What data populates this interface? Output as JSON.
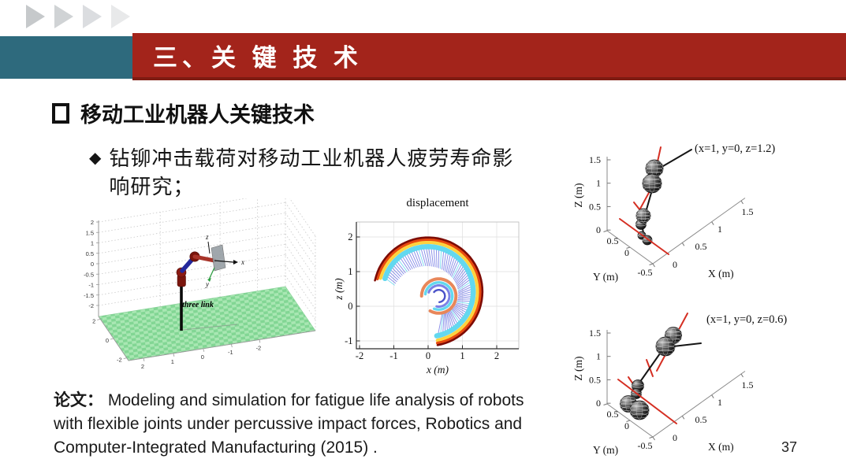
{
  "slide": {
    "title": "三、关 键 技 术",
    "heading": "移动工业机器人关键技术",
    "bullet_marker": "◆",
    "bullet": "钻铆冲击载荷对移动工业机器人疲劳寿命影\n响研究；",
    "paper_label": "论文：",
    "paper_text": "Modeling and simulation for fatigue life analysis of robots with flexible joints under percussive impact forces, Robotics and Computer-Integrated Manufacturing (2015) .",
    "page_number": "37",
    "colors": {
      "banner_red": "#a3241b",
      "banner_red_dark": "#7e1b12",
      "banner_teal": "#2e6a7d"
    }
  },
  "chart_data": [
    {
      "id": "three-link-robot-3d",
      "type": "3d-robot-pose",
      "title": "",
      "z_ticks": [
        "2",
        "1.5",
        "1",
        "0.5",
        "0",
        "-0.5",
        "-1",
        "-1.5",
        "-2"
      ],
      "x_ticks": [
        "2",
        "1",
        "0",
        "-1",
        "-2"
      ],
      "y_ticks": [
        "2",
        "0",
        "-2"
      ],
      "robot_label": "three link",
      "frame_labels": [
        "x",
        "y",
        "z"
      ],
      "floor": "green checkerboard plane",
      "links": [
        "black base pole",
        "blue link",
        "red link",
        "gray end plate"
      ]
    },
    {
      "id": "displacement",
      "type": "line",
      "title": "displacement",
      "xlabel": "x (m)",
      "ylabel": "z (m)",
      "x_ticks": [
        "-2",
        "-1",
        "0",
        "1",
        "2"
      ],
      "y_ticks": [
        "2",
        "1",
        "0",
        "-1"
      ],
      "xlim": [
        -2.4,
        2.4
      ],
      "ylim": [
        -1.4,
        2.4
      ],
      "grid": true,
      "series": [
        {
          "name": "flexible-arm sweep trajectories",
          "style": "jet-colormap fan of arm configurations",
          "outer_circle": {
            "center": [
              0,
              0.42
            ],
            "radius": 1.55
          },
          "inner_spiral": {
            "center": [
              0.3,
              0.33
            ],
            "radius_start": 1.02,
            "radius_end": 0.5
          },
          "sweep_deg": [
            162,
            -78
          ]
        }
      ]
    },
    {
      "id": "pose-z-1-2",
      "type": "3d-robot-pose",
      "annotation": "(x=1, y=0, z=1.2)",
      "xlabel": "X (m)",
      "ylabel": "Y (m)",
      "zlabel": "Z (m)",
      "x_ticks": [
        "0",
        "0.5",
        "1",
        "1.5"
      ],
      "y_ticks": [
        "0.5",
        "0",
        "-0.5"
      ],
      "z_ticks": [
        "1.5",
        "1",
        "0.5",
        "0"
      ]
    },
    {
      "id": "pose-z-0-6",
      "type": "3d-robot-pose",
      "annotation": "(x=1, y=0, z=0.6)",
      "xlabel": "X (m)",
      "ylabel": "Y (m)",
      "zlabel": "Z (m)",
      "x_ticks": [
        "0",
        "0.5",
        "1",
        "1.5"
      ],
      "y_ticks": [
        "0.5",
        "0",
        "-0.5"
      ],
      "z_ticks": [
        "1.5",
        "1",
        "0.5",
        "0"
      ]
    }
  ]
}
